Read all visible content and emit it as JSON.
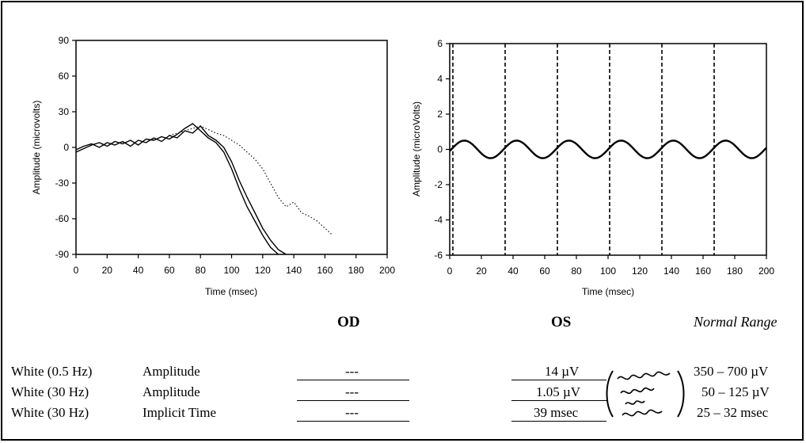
{
  "chart_data": [
    {
      "type": "line",
      "ylabel": "Amplitude (microvolts)",
      "xlabel": "Time (msec)",
      "xlim": [
        0,
        200
      ],
      "ylim": [
        -90,
        90
      ],
      "x_ticks": [
        "0",
        "20",
        "40",
        "60",
        "80",
        "100",
        "120",
        "140",
        "160",
        "180",
        "200"
      ],
      "y_ticks": [
        "90",
        "60",
        "30",
        "0",
        "-30",
        "-60",
        "-90"
      ],
      "series": [
        {
          "line_style": "solid",
          "x": [
            0,
            5,
            10,
            15,
            20,
            25,
            30,
            35,
            40,
            45,
            50,
            55,
            60,
            65,
            70,
            75,
            80,
            85,
            90,
            95,
            100,
            105,
            110,
            115,
            120,
            125,
            130,
            135
          ],
          "values": [
            -2,
            1,
            3,
            0,
            4,
            2,
            5,
            1,
            6,
            4,
            8,
            5,
            10,
            8,
            14,
            12,
            18,
            10,
            6,
            0,
            -12,
            -28,
            -42,
            -55,
            -68,
            -78,
            -86,
            -90
          ]
        },
        {
          "line_style": "solid",
          "x": [
            0,
            5,
            10,
            15,
            20,
            25,
            30,
            35,
            40,
            45,
            50,
            55,
            60,
            65,
            70,
            75,
            80,
            85,
            90,
            95,
            100,
            105,
            110,
            115,
            120,
            125,
            130
          ],
          "values": [
            -4,
            -1,
            2,
            4,
            1,
            5,
            3,
            6,
            2,
            7,
            6,
            9,
            7,
            11,
            16,
            20,
            14,
            8,
            4,
            -4,
            -18,
            -35,
            -50,
            -62,
            -74,
            -84,
            -90
          ]
        },
        {
          "line_style": "dotted",
          "x": [
            60,
            65,
            70,
            75,
            80,
            85,
            90,
            95,
            100,
            105,
            110,
            115,
            120,
            125,
            130,
            135,
            140,
            145,
            150,
            155,
            160,
            165
          ],
          "values": [
            10,
            12,
            14,
            16,
            18,
            15,
            12,
            10,
            6,
            2,
            -4,
            -10,
            -18,
            -30,
            -42,
            -50,
            -46,
            -55,
            -58,
            -62,
            -68,
            -74
          ]
        }
      ]
    },
    {
      "type": "line",
      "ylabel": "Amplitude (microVolts)",
      "xlabel": "Time (msec)",
      "xlim": [
        0,
        200
      ],
      "ylim": [
        -6,
        6
      ],
      "x_ticks": [
        "0",
        "20",
        "40",
        "60",
        "80",
        "100",
        "120",
        "140",
        "160",
        "180",
        "200"
      ],
      "y_ticks": [
        "6",
        "4",
        "2",
        "0",
        "-2",
        "-4",
        "-6"
      ],
      "vertical_markers": [
        2,
        35,
        68,
        101,
        134,
        167
      ],
      "waveform": {
        "shape": "sinusoid",
        "amplitude": 0.5,
        "period_ms": 33,
        "x_start": 0,
        "x_end": 200
      }
    }
  ],
  "table": {
    "headers": {
      "od": "OD",
      "os": "OS",
      "normal": "Normal Range"
    },
    "rows": [
      {
        "stim": "White (0.5 Hz)",
        "measure": "Amplitude",
        "od": "---",
        "os": "14 µV",
        "normal": "350 – 700 µV"
      },
      {
        "stim": "White (30 Hz)",
        "measure": "Amplitude",
        "od": "---",
        "os": "1.05 µV",
        "normal": "50 – 125 µV"
      },
      {
        "stim": "White (30 Hz)",
        "measure": "Implicit Time",
        "od": "---",
        "os": "39  msec",
        "normal": "25 – 32 msec"
      }
    ]
  }
}
